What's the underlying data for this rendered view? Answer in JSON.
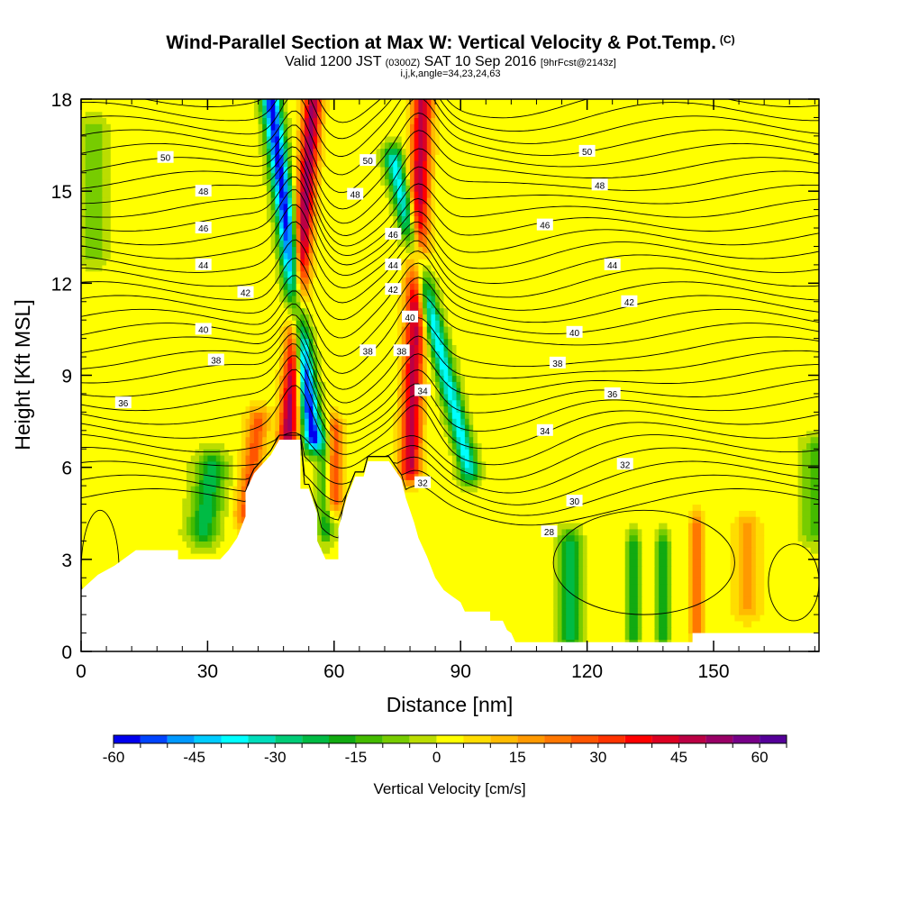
{
  "header": {
    "title": "Wind-Parallel Section at Max W: Vertical Velocity & Pot.Temp.",
    "copyright": "(C)",
    "valid_prefix": "Valid 1200 JST",
    "valid_utc": "(0300Z)",
    "valid_date": "SAT 10 Sep 2016",
    "forecast": "[9hrFcst@2143z]",
    "indices": "i,j,k,angle=34,23,24,63"
  },
  "chart_data": {
    "type": "contour_section",
    "xlabel": "Distance [nm]",
    "ylabel": "Height [Kft MSL]",
    "xlim": [
      0,
      175
    ],
    "ylim": [
      0,
      18
    ],
    "xticks": [
      "0",
      "30",
      "60",
      "90",
      "120",
      "150"
    ],
    "yticks": [
      "0",
      "3",
      "6",
      "9",
      "12",
      "15",
      "18"
    ],
    "colorbar": {
      "label": "Vertical Velocity [cm/s]",
      "ticks": [
        "-60",
        "-45",
        "-30",
        "-15",
        "0",
        "15",
        "30",
        "45",
        "60"
      ],
      "levels": [
        -60,
        -55,
        -50,
        -45,
        -40,
        -35,
        -30,
        -25,
        -20,
        -15,
        -10,
        -5,
        0,
        5,
        10,
        15,
        20,
        25,
        30,
        35,
        40,
        45,
        50,
        55,
        60,
        65
      ],
      "colors": [
        "#0000ee",
        "#0044ff",
        "#0099ff",
        "#00ccff",
        "#00ffff",
        "#00ddbb",
        "#00cc77",
        "#00bb44",
        "#11aa11",
        "#44bb00",
        "#77cc00",
        "#bbdd00",
        "#ffff00",
        "#ffdd00",
        "#ffbb00",
        "#ff9900",
        "#ff7700",
        "#ff5500",
        "#ff3300",
        "#ff0000",
        "#dd0022",
        "#bb0044",
        "#990066",
        "#770088",
        "#550099"
      ]
    },
    "terrain_kft": [
      [
        0,
        2.0
      ],
      [
        4,
        2.5
      ],
      [
        8,
        2.8
      ],
      [
        10,
        3.0
      ],
      [
        13,
        3.3
      ],
      [
        23,
        3.3
      ],
      [
        23,
        3.0
      ],
      [
        33,
        3.0
      ],
      [
        35,
        3.3
      ],
      [
        37,
        3.7
      ],
      [
        39,
        4.4
      ],
      [
        39,
        5.2
      ],
      [
        41,
        5.8
      ],
      [
        43,
        6.1
      ],
      [
        45,
        6.4
      ],
      [
        47,
        6.9
      ],
      [
        52,
        6.9
      ],
      [
        52,
        5.3
      ],
      [
        54,
        5.3
      ],
      [
        56,
        4.5
      ],
      [
        56,
        3.6
      ],
      [
        58,
        3.0
      ],
      [
        61,
        3.0
      ],
      [
        61,
        4.0
      ],
      [
        63,
        5.0
      ],
      [
        65,
        5.7
      ],
      [
        67,
        5.7
      ],
      [
        68,
        6.2
      ],
      [
        73,
        6.2
      ],
      [
        76,
        5.6
      ],
      [
        77,
        5.0
      ],
      [
        79,
        4.2
      ],
      [
        80,
        3.7
      ],
      [
        82,
        3.1
      ],
      [
        84,
        2.4
      ],
      [
        86,
        2.0
      ],
      [
        88,
        1.8
      ],
      [
        90,
        1.6
      ],
      [
        91,
        1.3
      ],
      [
        97,
        1.3
      ],
      [
        97,
        1.0
      ],
      [
        100,
        1.0
      ],
      [
        101,
        0.7
      ],
      [
        102,
        0.6
      ],
      [
        103,
        0.3
      ],
      [
        106,
        0.3
      ],
      [
        115,
        0.3
      ],
      [
        145,
        0.3
      ],
      [
        145,
        0.6
      ],
      [
        175,
        0.6
      ]
    ],
    "velocity_features": [
      {
        "kind": "updraft",
        "axis": [
          [
            49,
            7.0
          ],
          [
            55,
            18
          ]
        ],
        "width_nm": 2.2,
        "peak_cm_s": 50
      },
      {
        "kind": "downdraft",
        "axis": [
          [
            55,
            7.0
          ],
          [
            45,
            18
          ]
        ],
        "width_nm": 2.2,
        "peak_cm_s": -60
      },
      {
        "kind": "updraft",
        "axis": [
          [
            78,
            6.0
          ],
          [
            81,
            18
          ]
        ],
        "width_nm": 2.4,
        "peak_cm_s": 45
      },
      {
        "kind": "downdraft",
        "axis": [
          [
            92,
            6.0
          ],
          [
            74,
            16
          ]
        ],
        "width_nm": 2.2,
        "peak_cm_s": -40
      },
      {
        "kind": "updraft",
        "axis": [
          [
            60,
            5.0
          ],
          [
            60,
            7.2
          ]
        ],
        "width_nm": 2.0,
        "peak_cm_s": 30
      },
      {
        "kind": "updraft",
        "axis": [
          [
            39,
            4.5
          ],
          [
            42,
            7.5
          ]
        ],
        "width_nm": 2.5,
        "peak_cm_s": 25
      },
      {
        "kind": "downdraft",
        "axis": [
          [
            29,
            4.0
          ],
          [
            31,
            6.0
          ]
        ],
        "width_nm": 3.5,
        "peak_cm_s": -25
      },
      {
        "kind": "downdraft",
        "axis": [
          [
            58,
            4.0
          ],
          [
            58,
            7.0
          ]
        ],
        "width_nm": 1.8,
        "peak_cm_s": -20
      },
      {
        "kind": "downdraft",
        "axis": [
          [
            116,
            0.5
          ],
          [
            116,
            3.5
          ]
        ],
        "width_nm": 2.5,
        "peak_cm_s": -25
      },
      {
        "kind": "downdraft",
        "axis": [
          [
            131,
            0.5
          ],
          [
            131,
            3.5
          ]
        ],
        "width_nm": 1.5,
        "peak_cm_s": -20
      },
      {
        "kind": "downdraft",
        "axis": [
          [
            138,
            0.5
          ],
          [
            138,
            3.5
          ]
        ],
        "width_nm": 1.5,
        "peak_cm_s": -20
      },
      {
        "kind": "updraft",
        "axis": [
          [
            146,
            0.7
          ],
          [
            146,
            4.0
          ]
        ],
        "width_nm": 1.5,
        "peak_cm_s": 25
      },
      {
        "kind": "updraft",
        "axis": [
          [
            158,
            1.5
          ],
          [
            158,
            4.0
          ]
        ],
        "width_nm": 3.0,
        "peak_cm_s": 15
      },
      {
        "kind": "downdraft",
        "axis": [
          [
            174,
            4.0
          ],
          [
            174,
            6.5
          ]
        ],
        "width_nm": 3.0,
        "peak_cm_s": -15
      },
      {
        "kind": "downdraft",
        "axis": [
          [
            3,
            13.0
          ],
          [
            3,
            17.0
          ]
        ],
        "width_nm": 3.0,
        "peak_cm_s": -10
      }
    ],
    "theta_contour_labels": [
      {
        "text": "50",
        "x": 20,
        "y": 16.1
      },
      {
        "text": "48",
        "x": 29,
        "y": 15.0
      },
      {
        "text": "46",
        "x": 29,
        "y": 13.8
      },
      {
        "text": "44",
        "x": 29,
        "y": 12.6
      },
      {
        "text": "42",
        "x": 39,
        "y": 11.7
      },
      {
        "text": "40",
        "x": 29,
        "y": 10.5
      },
      {
        "text": "38",
        "x": 32,
        "y": 9.5
      },
      {
        "text": "36",
        "x": 10,
        "y": 8.1
      },
      {
        "text": "50",
        "x": 68,
        "y": 16.0
      },
      {
        "text": "48",
        "x": 65,
        "y": 14.9
      },
      {
        "text": "46",
        "x": 74,
        "y": 13.6
      },
      {
        "text": "44",
        "x": 74,
        "y": 12.6
      },
      {
        "text": "42",
        "x": 74,
        "y": 11.8
      },
      {
        "text": "40",
        "x": 78,
        "y": 10.9
      },
      {
        "text": "38",
        "x": 68,
        "y": 9.8
      },
      {
        "text": "38",
        "x": 76,
        "y": 9.8
      },
      {
        "text": "34",
        "x": 81,
        "y": 8.5
      },
      {
        "text": "32",
        "x": 81,
        "y": 5.5
      },
      {
        "text": "50",
        "x": 120,
        "y": 16.3
      },
      {
        "text": "48",
        "x": 123,
        "y": 15.2
      },
      {
        "text": "46",
        "x": 110,
        "y": 13.9
      },
      {
        "text": "44",
        "x": 126,
        "y": 12.6
      },
      {
        "text": "42",
        "x": 130,
        "y": 11.4
      },
      {
        "text": "40",
        "x": 117,
        "y": 10.4
      },
      {
        "text": "38",
        "x": 113,
        "y": 9.4
      },
      {
        "text": "36",
        "x": 126,
        "y": 8.4
      },
      {
        "text": "34",
        "x": 110,
        "y": 7.2
      },
      {
        "text": "32",
        "x": 129,
        "y": 6.1
      },
      {
        "text": "30",
        "x": 117,
        "y": 4.9
      },
      {
        "text": "28",
        "x": 111,
        "y": 3.9
      }
    ]
  }
}
